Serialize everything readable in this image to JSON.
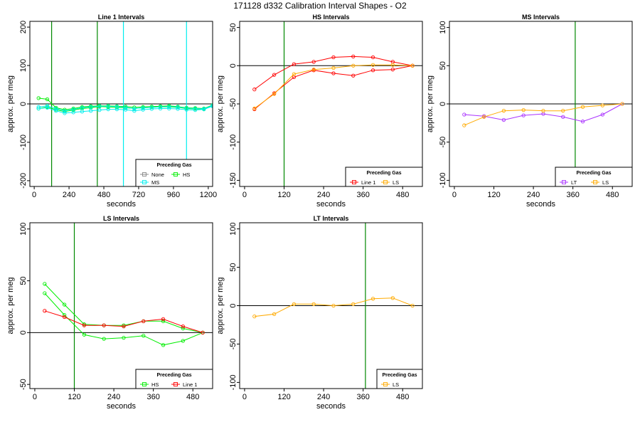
{
  "title": "171128   d332   Calibration Interval Shapes - O2",
  "legend_title": "Preceding Gas",
  "colors": {
    "Line 1": "#ff0000",
    "HS": "#00ee00",
    "MS": "#00eeee",
    "LS": "#ffaa00",
    "LT": "#aa33ff",
    "None": "#888888",
    "vline_green": "#008800",
    "vline_cyan": "#00eeee"
  },
  "chart_data": [
    {
      "type": "line",
      "title": "Line 1 Intervals",
      "xlabel": "seconds",
      "ylabel": "approx. per meg",
      "xlim": [
        -30,
        1230
      ],
      "ylim": [
        -215,
        215
      ],
      "xticks": [
        0,
        240,
        480,
        720,
        960,
        1200
      ],
      "yticks": [
        -200,
        -100,
        0,
        100,
        200
      ],
      "hline": 0,
      "vlines": [
        {
          "x": 120,
          "color": "vline_green"
        },
        {
          "x": 435,
          "color": "vline_green"
        },
        {
          "x": 615,
          "color": "vline_cyan"
        },
        {
          "x": 1050,
          "color": "vline_cyan"
        }
      ],
      "series": [
        {
          "name": "HS",
          "color": "HS",
          "x": [
            30,
            90,
            150,
            210,
            270,
            330,
            390,
            450,
            510,
            570,
            630,
            690,
            750,
            810,
            870,
            930,
            990,
            1050,
            1110,
            1170,
            1230
          ],
          "y": [
            15,
            12,
            -10,
            -15,
            -12,
            -8,
            -6,
            -5,
            -5,
            -6,
            -7,
            -9,
            -8,
            -7,
            -6,
            -5,
            -7,
            -10,
            -11,
            -12,
            -3
          ]
        },
        {
          "name": "HS",
          "color": "HS",
          "x": [
            30,
            90,
            150,
            210,
            270,
            330,
            390,
            450,
            510,
            570,
            630,
            690,
            750,
            810,
            870,
            930,
            990,
            1050,
            1110,
            1170,
            1230
          ],
          "y": [
            -12,
            -8,
            -15,
            -20,
            -16,
            -12,
            -10,
            -7,
            -8,
            -9,
            -10,
            -12,
            -10,
            -9,
            -8,
            -8,
            -9,
            -12,
            -13,
            -14,
            -5
          ]
        },
        {
          "name": "MS",
          "color": "MS",
          "x": [
            30,
            90,
            150,
            210,
            270,
            330,
            390,
            450,
            510,
            570,
            630,
            690,
            750,
            810,
            870,
            930,
            990,
            1050,
            1110,
            1170,
            1230
          ],
          "y": [
            -8,
            -5,
            -12,
            -18,
            -14,
            -10,
            -8,
            -6,
            -6,
            -7,
            -9,
            -12,
            -10,
            -9,
            -8,
            -7,
            -8,
            -11,
            -12,
            -13,
            -4
          ]
        },
        {
          "name": "MS",
          "color": "MS",
          "x": [
            30,
            90,
            150,
            210,
            270,
            330,
            390,
            450,
            510,
            570,
            630,
            690,
            750,
            810,
            870,
            930,
            990,
            1050,
            1110,
            1170,
            1230
          ],
          "y": [
            -12,
            -10,
            -18,
            -24,
            -22,
            -20,
            -18,
            -16,
            -14,
            -14,
            -15,
            -18,
            -15,
            -13,
            -12,
            -12,
            -13,
            -15,
            -16,
            -14,
            -6
          ]
        }
      ],
      "legend": {
        "position": "bottom-right",
        "entries": [
          "None",
          "HS",
          "MS"
        ]
      }
    },
    {
      "type": "line",
      "title": "HS Intervals",
      "xlabel": "seconds",
      "ylabel": "approx. per meg",
      "xlim": [
        -15,
        540
      ],
      "ylim": [
        -158,
        58
      ],
      "xticks": [
        0,
        120,
        240,
        360,
        480
      ],
      "yticks": [
        -150,
        -100,
        -50,
        0,
        50
      ],
      "hline": 0,
      "vlines": [
        {
          "x": 120,
          "color": "vline_green"
        }
      ],
      "series": [
        {
          "name": "Line 1",
          "color": "Line 1",
          "x": [
            30,
            90,
            150,
            210,
            270,
            330,
            390,
            450,
            510
          ],
          "y": [
            -31,
            -12,
            2,
            5,
            11,
            12,
            11,
            5,
            0
          ]
        },
        {
          "name": "Line 1",
          "color": "Line 1",
          "x": [
            30,
            90,
            150,
            210,
            270,
            330,
            390,
            450,
            510
          ],
          "y": [
            -57,
            -36,
            -15,
            -6,
            -10,
            -13,
            -6,
            -5,
            0
          ]
        },
        {
          "name": "LS",
          "color": "LS",
          "x": [
            30,
            90,
            150,
            210,
            270,
            330,
            390,
            450,
            510
          ],
          "y": [
            -56,
            -37,
            -11,
            -5,
            -3,
            0,
            1,
            1,
            0
          ]
        }
      ],
      "legend": {
        "position": "bottom-right",
        "entries": [
          "Line 1",
          "LS"
        ]
      }
    },
    {
      "type": "line",
      "title": "MS Intervals",
      "xlabel": "seconds",
      "ylabel": "approx. per meg",
      "xlim": [
        -15,
        540
      ],
      "ylim": [
        -108,
        108
      ],
      "xticks": [
        0,
        120,
        240,
        360,
        480
      ],
      "yticks": [
        -100,
        -50,
        0,
        50,
        100
      ],
      "hline": 0,
      "vlines": [
        {
          "x": 367,
          "color": "vline_green"
        }
      ],
      "series": [
        {
          "name": "LT",
          "color": "LT",
          "x": [
            30,
            90,
            150,
            210,
            270,
            330,
            390,
            450,
            510
          ],
          "y": [
            -14,
            -16,
            -21,
            -15,
            -13,
            -17,
            -23,
            -14,
            0
          ]
        },
        {
          "name": "LS",
          "color": "LS",
          "x": [
            30,
            90,
            150,
            210,
            270,
            330,
            390,
            450,
            510
          ],
          "y": [
            -28,
            -17,
            -9,
            -8,
            -9,
            -9,
            -4,
            -2,
            0
          ]
        }
      ],
      "legend": {
        "position": "bottom-right",
        "entries": [
          "LT",
          "LS"
        ]
      }
    },
    {
      "type": "line",
      "title": "LS Intervals",
      "xlabel": "seconds",
      "ylabel": "approx. per meg",
      "xlim": [
        -15,
        540
      ],
      "ylim": [
        -54,
        106
      ],
      "xticks": [
        0,
        120,
        240,
        360,
        480
      ],
      "yticks": [
        -50,
        0,
        50,
        100
      ],
      "hline": 0,
      "vlines": [
        {
          "x": 120,
          "color": "vline_green"
        }
      ],
      "series": [
        {
          "name": "HS",
          "color": "HS",
          "x": [
            30,
            90,
            150,
            210,
            270,
            330,
            390,
            450,
            510
          ],
          "y": [
            47,
            27,
            8,
            7,
            7,
            11,
            11,
            4,
            0
          ]
        },
        {
          "name": "HS",
          "color": "HS",
          "x": [
            30,
            90,
            150,
            210,
            270,
            330,
            390,
            450,
            510
          ],
          "y": [
            38,
            17,
            -2,
            -6,
            -5,
            -3,
            -12,
            -8,
            0
          ]
        },
        {
          "name": "Line 1",
          "color": "Line 1",
          "x": [
            30,
            90,
            150,
            210,
            270,
            330,
            390,
            450,
            510
          ],
          "y": [
            21,
            15,
            7,
            7,
            6,
            11,
            13,
            6,
            0
          ]
        }
      ],
      "legend": {
        "position": "bottom-right",
        "entries": [
          "HS",
          "Line 1"
        ]
      }
    },
    {
      "type": "line",
      "title": "LT Intervals",
      "xlabel": "seconds",
      "ylabel": "approx. per meg",
      "xlim": [
        -15,
        540
      ],
      "ylim": [
        -108,
        108
      ],
      "xticks": [
        0,
        120,
        240,
        360,
        480
      ],
      "yticks": [
        -100,
        -50,
        0,
        50,
        100
      ],
      "hline": 0,
      "vlines": [
        {
          "x": 367,
          "color": "vline_green"
        }
      ],
      "series": [
        {
          "name": "LS",
          "color": "LS",
          "x": [
            30,
            90,
            150,
            210,
            270,
            330,
            390,
            450,
            510
          ],
          "y": [
            -14,
            -11,
            2,
            2,
            0,
            2,
            9,
            10,
            0
          ]
        }
      ],
      "legend": {
        "position": "bottom-right",
        "entries": [
          "LS"
        ]
      }
    }
  ]
}
